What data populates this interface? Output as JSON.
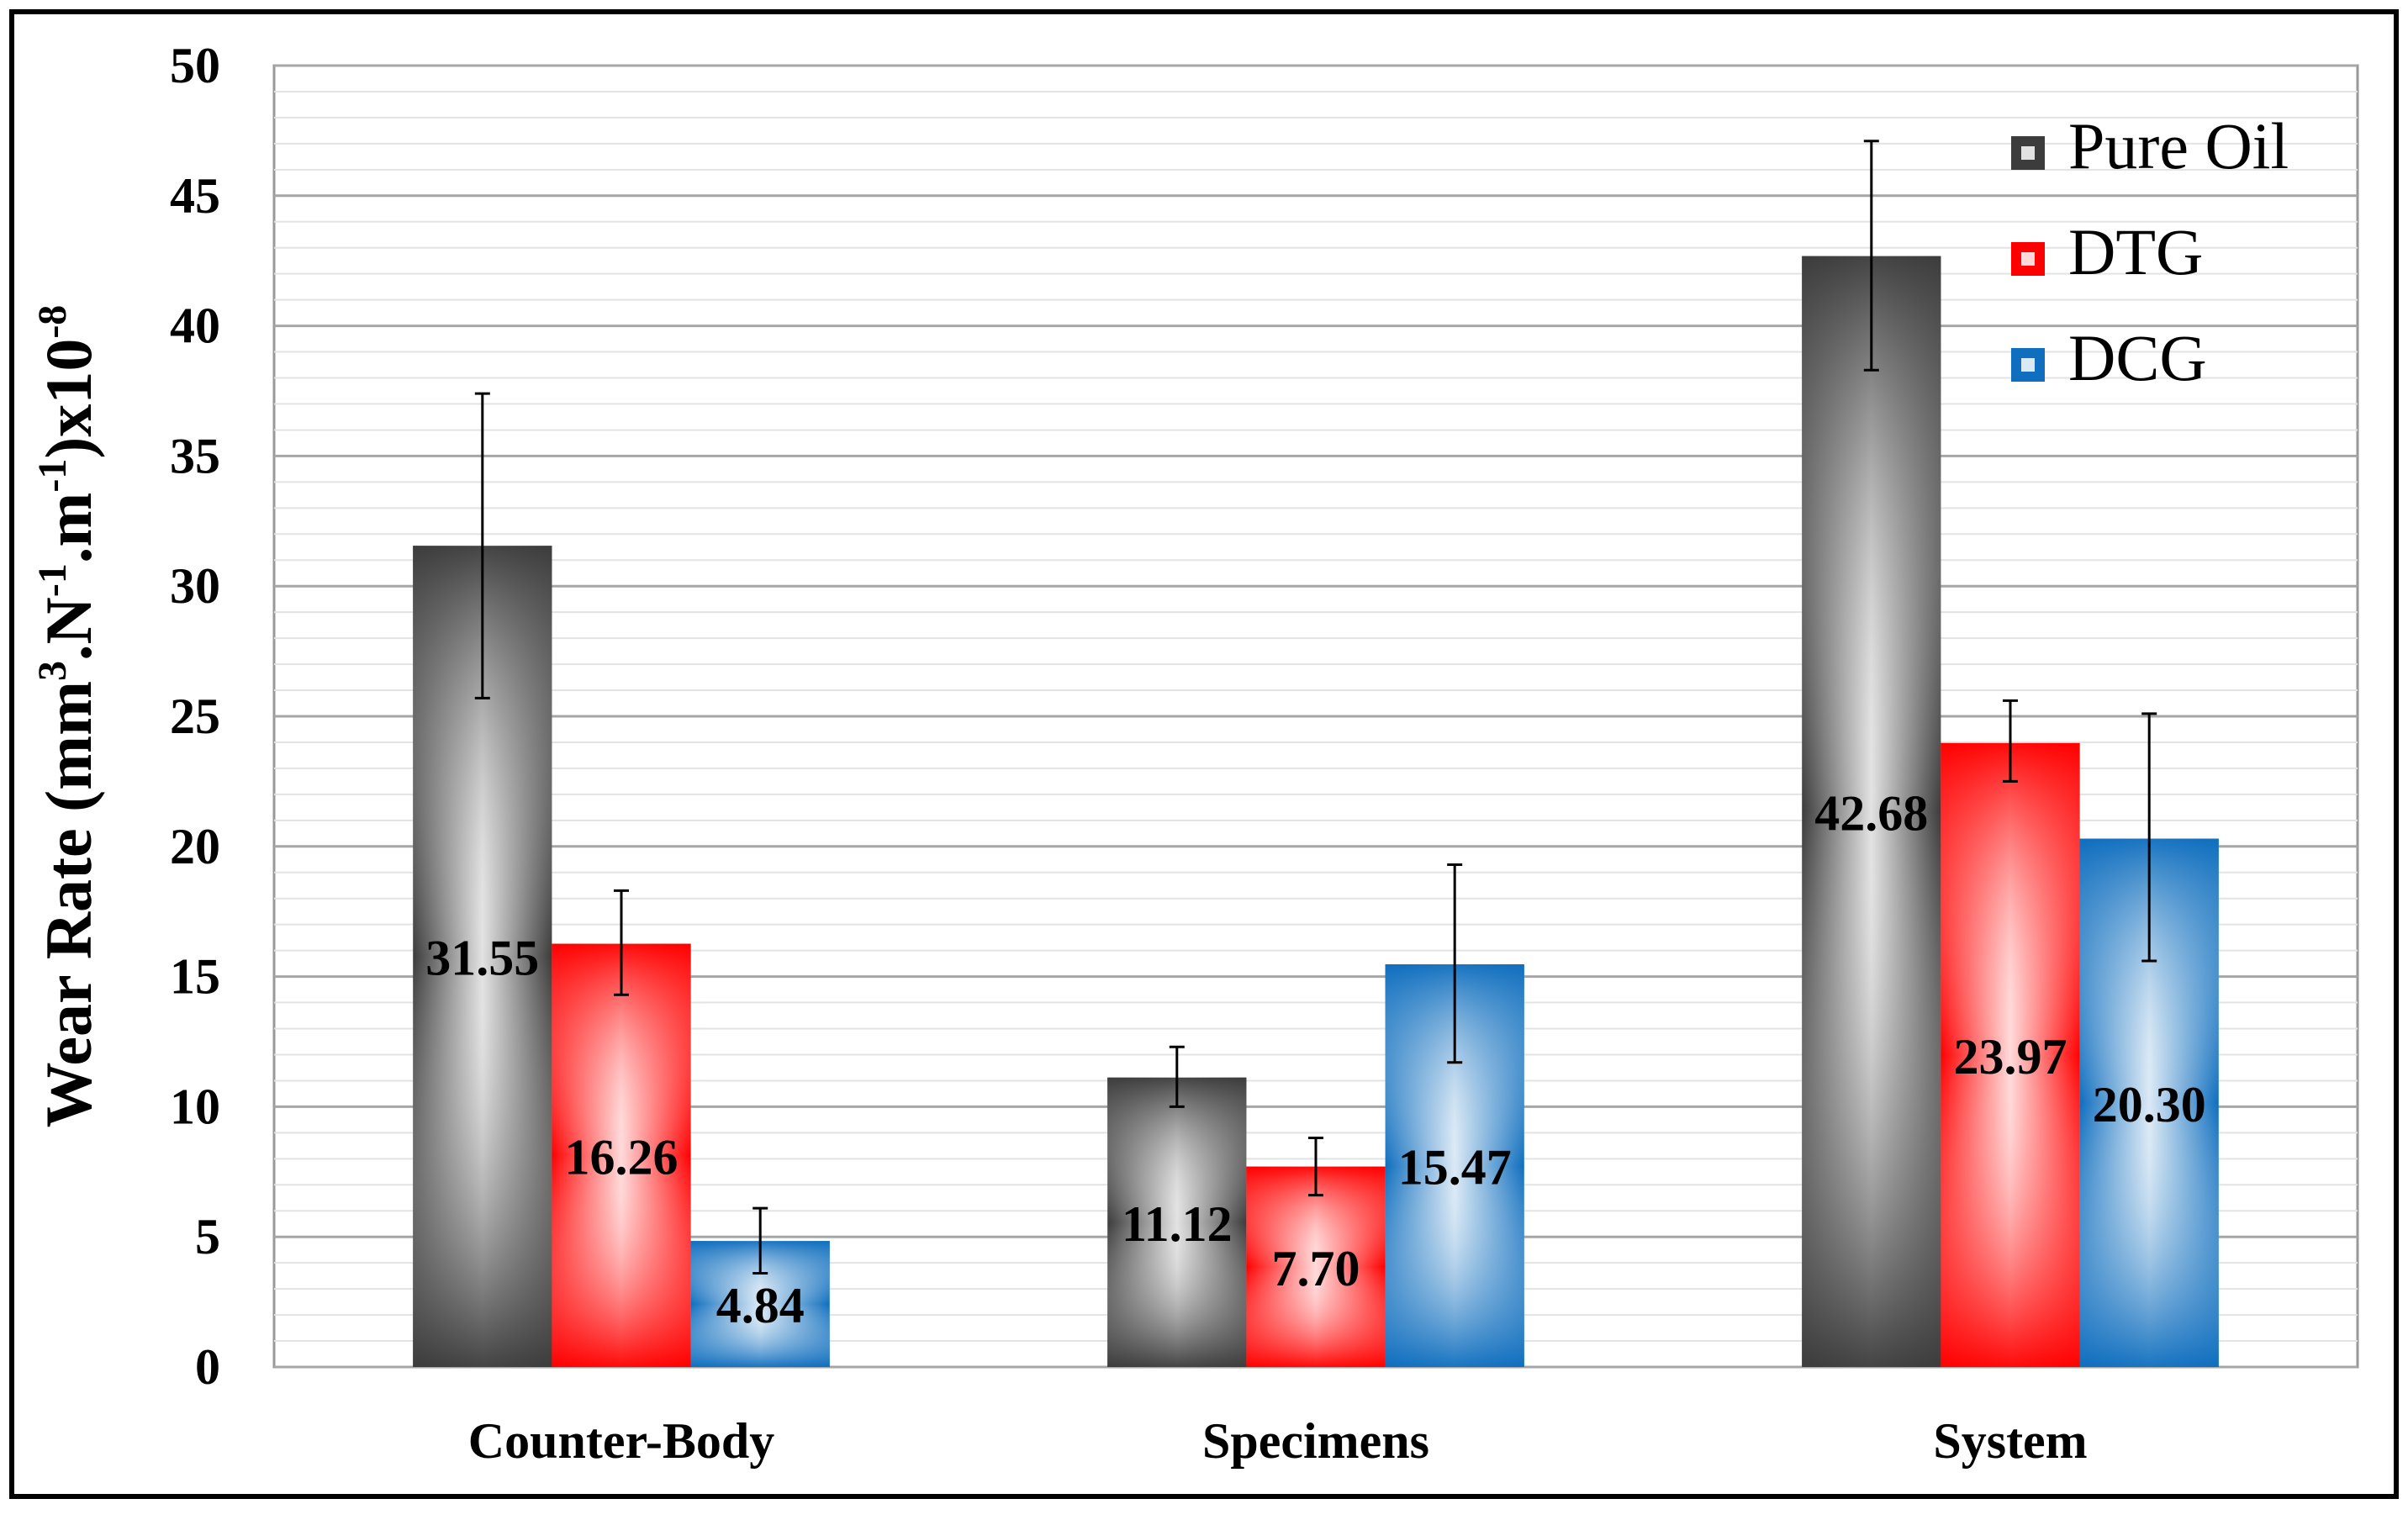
{
  "chart_data": {
    "type": "bar",
    "title": "",
    "xlabel": "",
    "ylabel": {
      "prefix": "Wear Rate (mm",
      "sup1": "3",
      "mid1": ".N",
      "sup2": "-1",
      "mid2": ".m",
      "sup3": "-1",
      "mid3": ")x10",
      "sup4": "-8"
    },
    "ylim": [
      0,
      50
    ],
    "yticks": [
      0,
      5,
      10,
      15,
      20,
      25,
      30,
      35,
      40,
      45,
      50
    ],
    "minor_grid_step": 1,
    "categories": [
      "Counter-Body",
      "Specimens",
      "System"
    ],
    "series": [
      {
        "name": "Pure Oil",
        "values": [
          31.55,
          11.12,
          42.68
        ],
        "labels": [
          "31.55",
          "11.12",
          "42.68"
        ],
        "err_low": [
          25.7,
          10.0,
          38.3
        ],
        "err_high": [
          37.4,
          12.3,
          47.1
        ],
        "color": "#3c3c3c"
      },
      {
        "name": "DTG",
        "values": [
          16.26,
          7.7,
          23.97
        ],
        "labels": [
          "16.26",
          "7.70",
          "23.97"
        ],
        "err_low": [
          14.3,
          6.6,
          22.5
        ],
        "err_high": [
          18.3,
          8.8,
          25.6
        ],
        "color": "#ff0000"
      },
      {
        "name": "DCG",
        "values": [
          4.84,
          15.47,
          20.3
        ],
        "labels": [
          "4.84",
          "15.47",
          "20.30"
        ],
        "err_low": [
          3.6,
          11.7,
          15.6
        ],
        "err_high": [
          6.1,
          19.3,
          25.1
        ],
        "color": "#0f6ebe"
      }
    ],
    "legend_position": "top-right"
  }
}
